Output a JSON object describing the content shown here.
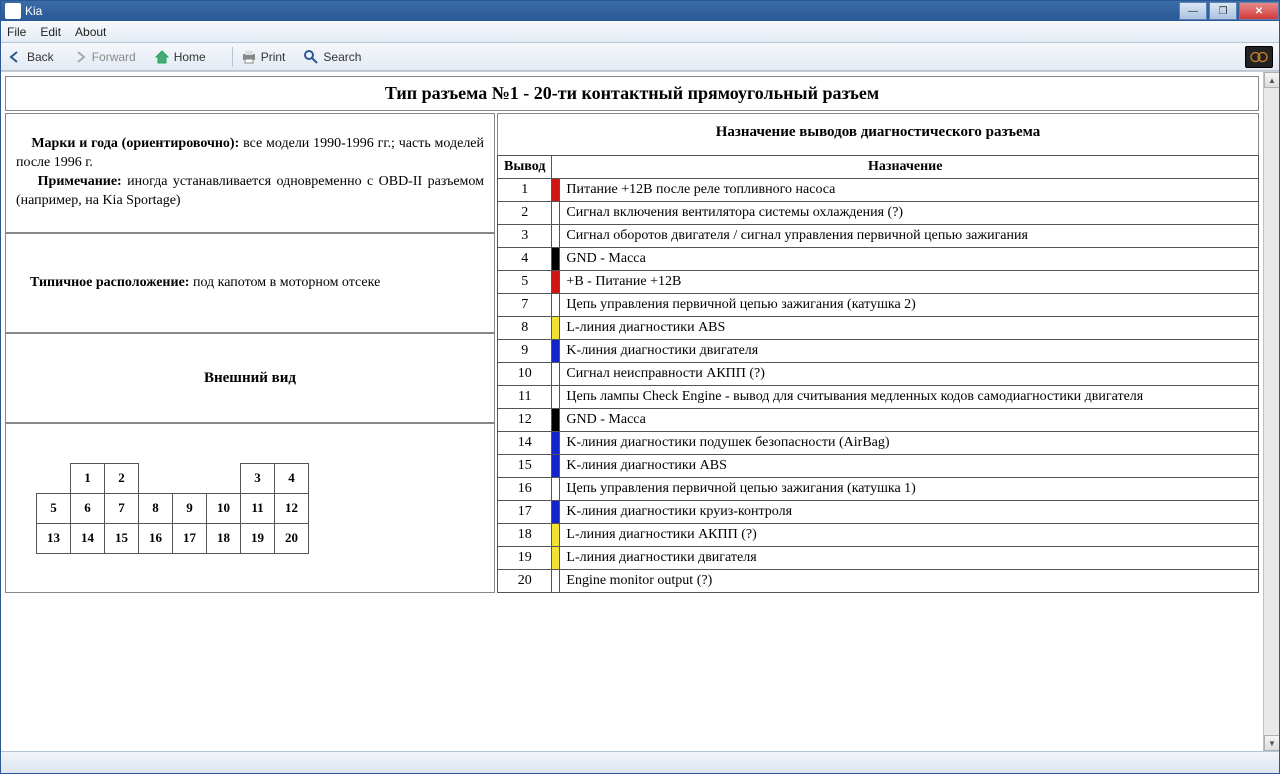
{
  "window": {
    "title": "Kia"
  },
  "menu": {
    "file": "File",
    "edit": "Edit",
    "about": "About"
  },
  "toolbar": {
    "back": "Back",
    "forward": "Forward",
    "home": "Home",
    "print": "Print",
    "search": "Search"
  },
  "page": {
    "title": "Тип разъема №1 - 20-ти контактный прямоугольный разъем",
    "left": {
      "brands_label": "Марки и года (ориентировочно):",
      "brands_text": " все модели 1990-1996 гг.; часть моделей после 1996 г.",
      "note_label": "Примечание:",
      "note_text": " иногда устанавливается одновременно с OBD-II разъемом (например, на Kia Sportage)",
      "location_label": "Типичное расположение:",
      "location_text": " под капотом в моторном отсеке",
      "appearance_heading": "Внешний вид"
    },
    "connector_rows": [
      [
        "",
        "1",
        "2",
        "",
        "",
        "",
        "3",
        "4",
        ""
      ],
      [
        "5",
        "6",
        "7",
        "8",
        "9",
        "10",
        "11",
        "12"
      ],
      [
        "13",
        "14",
        "15",
        "16",
        "17",
        "18",
        "19",
        "20"
      ]
    ],
    "right": {
      "table_title": "Назначение выводов диагностического разъема",
      "col_pin": "Вывод",
      "col_name": "Назначение"
    },
    "colors": {
      "red": "#d01515",
      "black": "#000000",
      "blue": "#1225c9",
      "yellow": "#f2e233",
      "none": "#ffffff"
    },
    "pins": [
      {
        "num": "1",
        "color": "red",
        "desc": "Питание +12В после реле топливного насоса"
      },
      {
        "num": "2",
        "color": "none",
        "desc": "Сигнал включения вентилятора системы охлаждения (?)"
      },
      {
        "num": "3",
        "color": "none",
        "desc": "Сигнал оборотов двигателя / сигнал управления первичной цепью зажигания"
      },
      {
        "num": "4",
        "color": "black",
        "desc": "GND - Масса"
      },
      {
        "num": "5",
        "color": "red",
        "desc": "+B - Питание +12В"
      },
      {
        "num": "7",
        "color": "none",
        "desc": "Цепь управления первичной цепью зажигания (катушка 2)"
      },
      {
        "num": "8",
        "color": "yellow",
        "desc": "L-линия диагностики ABS"
      },
      {
        "num": "9",
        "color": "blue",
        "desc": "K-линия диагностики двигателя"
      },
      {
        "num": "10",
        "color": "none",
        "desc": "Сигнал неисправности АКПП (?)"
      },
      {
        "num": "11",
        "color": "none",
        "desc": "Цепь лампы Check Engine - вывод для считывания медленных кодов самодиагностики двигателя"
      },
      {
        "num": "12",
        "color": "black",
        "desc": "GND - Масса"
      },
      {
        "num": "14",
        "color": "blue",
        "desc": "K-линия диагностики подушек безопасности (AirBag)"
      },
      {
        "num": "15",
        "color": "blue",
        "desc": "K-линия диагностики ABS"
      },
      {
        "num": "16",
        "color": "none",
        "desc": "Цепь управления первичной цепью зажигания (катушка 1)"
      },
      {
        "num": "17",
        "color": "blue",
        "desc": "K-линия диагностики круиз-контроля"
      },
      {
        "num": "18",
        "color": "yellow",
        "desc": "L-линия диагностики АКПП (?)"
      },
      {
        "num": "19",
        "color": "yellow",
        "desc": "L-линия диагностики двигателя"
      },
      {
        "num": "20",
        "color": "none",
        "desc": "Engine monitor output (?)"
      }
    ]
  }
}
